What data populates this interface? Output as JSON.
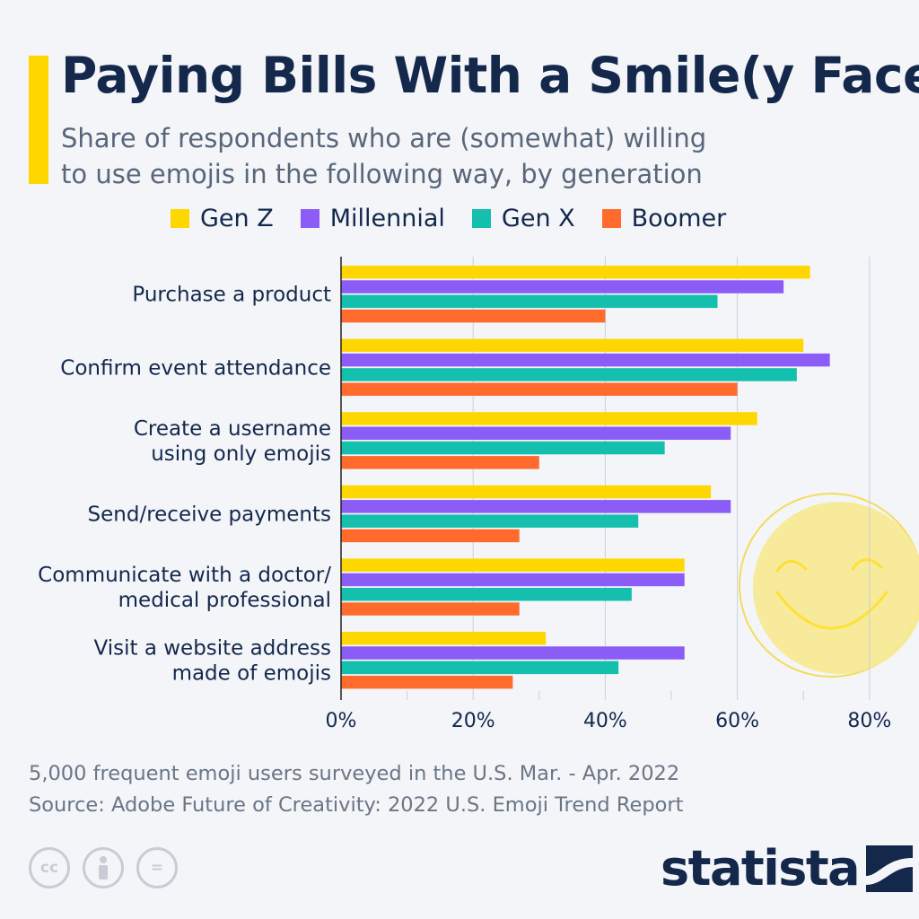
{
  "header": {
    "title": "Paying Bills With a Smile(y Face)",
    "subtitle_line1": "Share of respondents who are (somewhat) willing",
    "subtitle_line2": "to use emojis in the following way, by generation"
  },
  "footer": {
    "note": "5,000 frequent emoji users surveyed in the U.S. Mar. - Apr. 2022",
    "source": "Source: Adobe Future of Creativity: 2022 U.S. Emoji Trend Report"
  },
  "brand": {
    "name": "statista"
  },
  "license_icons": [
    "cc-icon",
    "attribution-icon",
    "no-derivatives-icon"
  ],
  "license_text": {
    "cc": "cc",
    "equals": "="
  },
  "decoration": {
    "icon": "smiley-face-icon"
  },
  "colors": {
    "gen_z": "#ffd700",
    "millennial": "#8b5cf6",
    "gen_x": "#14bfad",
    "boomer": "#ff6b2c",
    "text": "#14284b",
    "grid": "#c9d0db"
  },
  "chart_data": {
    "type": "bar",
    "orientation": "horizontal",
    "categories": [
      [
        "Purchase a product"
      ],
      [
        "Confirm event attendance"
      ],
      [
        "Create a username",
        "using only emojis"
      ],
      [
        "Send/receive payments"
      ],
      [
        "Communicate with a doctor/",
        "medical professional"
      ],
      [
        "Visit a website address",
        "made of emojis"
      ]
    ],
    "series": [
      {
        "name": "Gen Z",
        "color": "#ffd700",
        "values": [
          71,
          70,
          63,
          56,
          52,
          31
        ]
      },
      {
        "name": "Millennial",
        "color": "#8b5cf6",
        "values": [
          67,
          74,
          59,
          59,
          52,
          52
        ]
      },
      {
        "name": "Gen X",
        "color": "#14bfad",
        "values": [
          57,
          69,
          49,
          45,
          44,
          42
        ]
      },
      {
        "name": "Boomer",
        "color": "#ff6b2c",
        "values": [
          40,
          60,
          30,
          27,
          27,
          26
        ]
      }
    ],
    "xlim": [
      0,
      80
    ],
    "xticks": [
      "0%",
      "20%",
      "40%",
      "60%",
      "80%"
    ],
    "grid": true,
    "legend_position": "top"
  }
}
